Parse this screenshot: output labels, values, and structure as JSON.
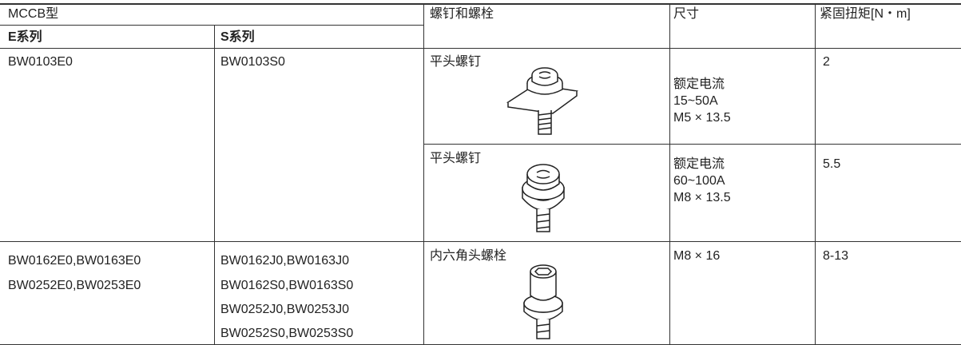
{
  "table": {
    "header": {
      "mccb_type": "MCCB型",
      "screws": "螺钉和螺栓",
      "size": "尺寸",
      "torque": "紧固扭矩[N・m]",
      "e_series": "E系列",
      "s_series": "S系列"
    },
    "rows": [
      {
        "e": [
          "BW0103E0"
        ],
        "s": [
          "BW0103S0"
        ],
        "items": [
          {
            "screw": "平头螺钉",
            "size": [
              "额定电流",
              "15~50A",
              "M5 × 13.5"
            ],
            "torque": "2"
          },
          {
            "screw": "平头螺钉",
            "size": [
              "额定电流",
              "60~100A",
              "M8 × 13.5"
            ],
            "torque": "5.5"
          }
        ]
      },
      {
        "e": [
          "BW0162E0,BW0163E0",
          "BW0252E0,BW0253E0"
        ],
        "s": [
          "BW0162J0,BW0163J0",
          "BW0162S0,BW0163S0",
          "BW0252J0,BW0253J0",
          "BW0252S0,BW0253S0"
        ],
        "items": [
          {
            "screw": "内六角头螺栓",
            "size": [
              "M8 × 16"
            ],
            "torque": "8-13"
          }
        ]
      }
    ]
  }
}
